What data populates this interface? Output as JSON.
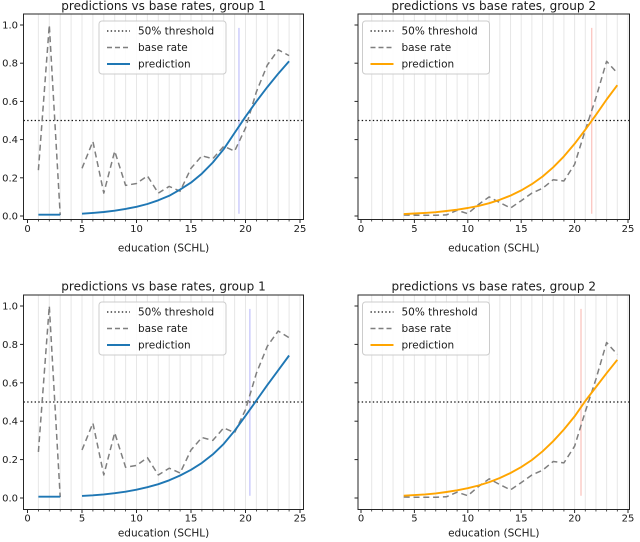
{
  "figure": {
    "background": "#ffffff",
    "grid_color": "#e7e7e7",
    "spine_color": "#262626",
    "text_color": "#1a1a1a",
    "threshold_color": "#111111",
    "base_rate_color": "#7f7f7f",
    "group1_color": "#1f77b4",
    "group2_color": "#ffa500",
    "vline_color_group1": "#c9c9fb",
    "vline_color_group2": "#fbc9c4"
  },
  "chart_data": [
    {
      "id": "group1-top",
      "type": "line",
      "title": "predictions vs base rates, group 1",
      "xlabel": "education (SCHL)",
      "xlim": [
        -0.4,
        25.4
      ],
      "ylim": [
        -0.02,
        1.06
      ],
      "xticks": [
        "0",
        "5",
        "10",
        "15",
        "20",
        "25"
      ],
      "xtick_values": [
        0,
        5,
        10,
        15,
        20,
        25
      ],
      "ytick_labels": [
        "0.0",
        "0.2",
        "0.4",
        "0.6",
        "0.8",
        "1.0"
      ],
      "ytick_values": [
        0.0,
        0.2,
        0.4,
        0.6,
        0.8,
        1.0
      ],
      "show_ytick_labels": true,
      "grid": "vertical-unit-lines",
      "threshold_y": 0.5,
      "vline": {
        "x": 19.4,
        "color": "#c9c9fb"
      },
      "legend": {
        "position": "upper-center",
        "items": [
          {
            "label": "50% threshold",
            "style": "dotted",
            "color": "#111111"
          },
          {
            "label": "base rate",
            "style": "dashed",
            "color": "#7f7f7f"
          },
          {
            "label": "prediction",
            "style": "solid",
            "color": "#1f77b4"
          }
        ]
      },
      "series": [
        {
          "name": "base rate",
          "style": "dashed",
          "color": "#7f7f7f",
          "segments": [
            [
              [
                1,
                0.24
              ],
              [
                2,
                1.0
              ],
              [
                3,
                0.005
              ]
            ],
            [
              [
                5,
                0.25
              ],
              [
                6,
                0.39
              ],
              [
                7,
                0.12
              ],
              [
                8,
                0.34
              ],
              [
                9,
                0.16
              ],
              [
                10,
                0.17
              ],
              [
                11,
                0.21
              ],
              [
                12,
                0.12
              ],
              [
                13,
                0.155
              ],
              [
                14,
                0.13
              ],
              [
                15,
                0.25
              ],
              [
                16,
                0.315
              ],
              [
                17,
                0.3
              ],
              [
                18,
                0.365
              ],
              [
                19,
                0.34
              ],
              [
                20,
                0.46
              ],
              [
                21,
                0.65
              ],
              [
                22,
                0.79
              ],
              [
                23,
                0.87
              ],
              [
                24,
                0.84
              ]
            ]
          ]
        },
        {
          "name": "prediction",
          "style": "solid",
          "color": "#1f77b4",
          "segments": [
            [
              [
                1,
                0.007
              ],
              [
                3,
                0.007
              ]
            ],
            [
              [
                5,
                0.012
              ],
              [
                6,
                0.016
              ],
              [
                7,
                0.021
              ],
              [
                8,
                0.028
              ],
              [
                9,
                0.037
              ],
              [
                10,
                0.048
              ],
              [
                11,
                0.063
              ],
              [
                12,
                0.082
              ],
              [
                13,
                0.106
              ],
              [
                14,
                0.138
              ],
              [
                15,
                0.175
              ],
              [
                16,
                0.222
              ],
              [
                17,
                0.28
              ],
              [
                18,
                0.35
              ],
              [
                19,
                0.435
              ],
              [
                20,
                0.52
              ],
              [
                21,
                0.6
              ],
              [
                22,
                0.675
              ],
              [
                23,
                0.745
              ],
              [
                24,
                0.81
              ]
            ]
          ]
        }
      ]
    },
    {
      "id": "group2-top",
      "type": "line",
      "title": "predictions vs base rates, group 2",
      "xlabel": "education (SCHL)",
      "xlim": [
        -0.4,
        25.4
      ],
      "ylim": [
        -0.02,
        1.06
      ],
      "xticks": [
        "0",
        "5",
        "10",
        "15",
        "20",
        "25"
      ],
      "xtick_values": [
        0,
        5,
        10,
        15,
        20,
        25
      ],
      "ytick_labels": [],
      "ytick_values": [
        0.0,
        0.2,
        0.4,
        0.6,
        0.8,
        1.0
      ],
      "show_ytick_labels": false,
      "grid": "vertical-unit-lines",
      "threshold_y": 0.5,
      "vline": {
        "x": 21.6,
        "color": "#fbc9c4"
      },
      "legend": {
        "position": "upper-left",
        "items": [
          {
            "label": "50% threshold",
            "style": "dotted",
            "color": "#111111"
          },
          {
            "label": "base rate",
            "style": "dashed",
            "color": "#7f7f7f"
          },
          {
            "label": "prediction",
            "style": "solid",
            "color": "#ffa500"
          }
        ]
      },
      "series": [
        {
          "name": "base rate",
          "style": "dashed",
          "color": "#7f7f7f",
          "segments": [
            [
              [
                4,
                0.005
              ],
              [
                5,
                0.004
              ],
              [
                6,
                0.004
              ],
              [
                7,
                0.004
              ],
              [
                8,
                0.006
              ],
              [
                9,
                0.03
              ],
              [
                10,
                0.012
              ],
              [
                11,
                0.06
              ],
              [
                12,
                0.1
              ],
              [
                13,
                0.07
              ],
              [
                14,
                0.042
              ],
              [
                15,
                0.08
              ],
              [
                16,
                0.12
              ],
              [
                17,
                0.145
              ],
              [
                18,
                0.19
              ],
              [
                19,
                0.183
              ],
              [
                20,
                0.27
              ],
              [
                21,
                0.45
              ],
              [
                22,
                0.62
              ],
              [
                23,
                0.81
              ],
              [
                24,
                0.748
              ]
            ]
          ]
        },
        {
          "name": "prediction",
          "style": "solid",
          "color": "#ffa500",
          "segments": [
            [
              [
                4,
                0.01
              ],
              [
                5,
                0.013
              ],
              [
                6,
                0.016
              ],
              [
                7,
                0.02
              ],
              [
                8,
                0.026
              ],
              [
                9,
                0.033
              ],
              [
                10,
                0.042
              ],
              [
                11,
                0.053
              ],
              [
                12,
                0.067
              ],
              [
                13,
                0.085
              ],
              [
                14,
                0.107
              ],
              [
                15,
                0.134
              ],
              [
                16,
                0.167
              ],
              [
                17,
                0.207
              ],
              [
                18,
                0.255
              ],
              [
                19,
                0.312
              ],
              [
                20,
                0.378
              ],
              [
                21,
                0.452
              ],
              [
                22,
                0.53
              ],
              [
                23,
                0.61
              ],
              [
                24,
                0.685
              ]
            ]
          ]
        }
      ]
    },
    {
      "id": "group1-bottom",
      "type": "line",
      "title": "predictions vs base rates, group 1",
      "xlabel": "education (SCHL)",
      "xlim": [
        -0.4,
        25.4
      ],
      "ylim": [
        -0.05,
        1.06
      ],
      "xticks": [
        "0",
        "5",
        "10",
        "15",
        "20",
        "25"
      ],
      "xtick_values": [
        0,
        5,
        10,
        15,
        20,
        25
      ],
      "ytick_labels": [
        "0.0",
        "0.2",
        "0.4",
        "0.6",
        "0.8",
        "1.0"
      ],
      "ytick_values": [
        0.0,
        0.2,
        0.4,
        0.6,
        0.8,
        1.0
      ],
      "show_ytick_labels": true,
      "grid": "vertical-unit-lines",
      "threshold_y": 0.5,
      "vline": {
        "x": 20.4,
        "color": "#c9c9fb"
      },
      "legend": {
        "position": "upper-center",
        "items": [
          {
            "label": "50% threshold",
            "style": "dotted",
            "color": "#111111"
          },
          {
            "label": "base rate",
            "style": "dashed",
            "color": "#7f7f7f"
          },
          {
            "label": "prediction",
            "style": "solid",
            "color": "#1f77b4"
          }
        ]
      },
      "series": [
        {
          "name": "base rate",
          "style": "dashed",
          "color": "#7f7f7f",
          "segments": [
            [
              [
                1,
                0.24
              ],
              [
                2,
                1.0
              ],
              [
                3,
                0.005
              ]
            ],
            [
              [
                5,
                0.25
              ],
              [
                6,
                0.39
              ],
              [
                7,
                0.12
              ],
              [
                8,
                0.34
              ],
              [
                9,
                0.16
              ],
              [
                10,
                0.17
              ],
              [
                11,
                0.21
              ],
              [
                12,
                0.12
              ],
              [
                13,
                0.155
              ],
              [
                14,
                0.13
              ],
              [
                15,
                0.25
              ],
              [
                16,
                0.315
              ],
              [
                17,
                0.3
              ],
              [
                18,
                0.365
              ],
              [
                19,
                0.34
              ],
              [
                20,
                0.46
              ],
              [
                21,
                0.65
              ],
              [
                22,
                0.79
              ],
              [
                23,
                0.87
              ],
              [
                24,
                0.835
              ]
            ]
          ]
        },
        {
          "name": "prediction",
          "style": "solid",
          "color": "#1f77b4",
          "segments": [
            [
              [
                1,
                0.007
              ],
              [
                3,
                0.007
              ]
            ],
            [
              [
                5,
                0.011
              ],
              [
                6,
                0.014
              ],
              [
                7,
                0.019
              ],
              [
                8,
                0.025
              ],
              [
                9,
                0.033
              ],
              [
                10,
                0.043
              ],
              [
                11,
                0.056
              ],
              [
                12,
                0.072
              ],
              [
                13,
                0.092
              ],
              [
                14,
                0.117
              ],
              [
                15,
                0.147
              ],
              [
                16,
                0.183
              ],
              [
                17,
                0.227
              ],
              [
                18,
                0.282
              ],
              [
                19,
                0.35
              ],
              [
                20,
                0.428
              ],
              [
                21,
                0.508
              ],
              [
                22,
                0.588
              ],
              [
                23,
                0.665
              ],
              [
                24,
                0.742
              ]
            ]
          ]
        }
      ]
    },
    {
      "id": "group2-bottom",
      "type": "line",
      "title": "predictions vs base rates, group 2",
      "xlabel": "education (SCHL)",
      "xlim": [
        -0.4,
        25.4
      ],
      "ylim": [
        -0.05,
        1.06
      ],
      "xticks": [
        "0",
        "5",
        "10",
        "15",
        "20",
        "25"
      ],
      "xtick_values": [
        0,
        5,
        10,
        15,
        20,
        25
      ],
      "ytick_labels": [],
      "ytick_values": [
        0.0,
        0.2,
        0.4,
        0.6,
        0.8,
        1.0
      ],
      "show_ytick_labels": false,
      "grid": "vertical-unit-lines",
      "threshold_y": 0.5,
      "vline": {
        "x": 20.6,
        "color": "#fbc9c4"
      },
      "legend": {
        "position": "upper-left",
        "items": [
          {
            "label": "50% threshold",
            "style": "dotted",
            "color": "#111111"
          },
          {
            "label": "base rate",
            "style": "dashed",
            "color": "#7f7f7f"
          },
          {
            "label": "prediction",
            "style": "solid",
            "color": "#ffa500"
          }
        ]
      },
      "series": [
        {
          "name": "base rate",
          "style": "dashed",
          "color": "#7f7f7f",
          "segments": [
            [
              [
                4,
                0.005
              ],
              [
                5,
                0.004
              ],
              [
                6,
                0.004
              ],
              [
                7,
                0.004
              ],
              [
                8,
                0.006
              ],
              [
                9,
                0.03
              ],
              [
                10,
                0.012
              ],
              [
                11,
                0.06
              ],
              [
                12,
                0.1
              ],
              [
                13,
                0.07
              ],
              [
                14,
                0.042
              ],
              [
                15,
                0.08
              ],
              [
                16,
                0.12
              ],
              [
                17,
                0.145
              ],
              [
                18,
                0.19
              ],
              [
                19,
                0.183
              ],
              [
                20,
                0.27
              ],
              [
                21,
                0.45
              ],
              [
                22,
                0.62
              ],
              [
                23,
                0.81
              ],
              [
                24,
                0.748
              ]
            ]
          ]
        },
        {
          "name": "prediction",
          "style": "solid",
          "color": "#ffa500",
          "segments": [
            [
              [
                4,
                0.012
              ],
              [
                5,
                0.015
              ],
              [
                6,
                0.019
              ],
              [
                7,
                0.024
              ],
              [
                8,
                0.031
              ],
              [
                9,
                0.04
              ],
              [
                10,
                0.051
              ],
              [
                11,
                0.065
              ],
              [
                12,
                0.083
              ],
              [
                13,
                0.104
              ],
              [
                14,
                0.13
              ],
              [
                15,
                0.161
              ],
              [
                16,
                0.198
              ],
              [
                17,
                0.243
              ],
              [
                18,
                0.296
              ],
              [
                19,
                0.357
              ],
              [
                20,
                0.425
              ],
              [
                21,
                0.505
              ],
              [
                22,
                0.578
              ],
              [
                23,
                0.65
              ],
              [
                24,
                0.72
              ]
            ]
          ]
        }
      ]
    }
  ]
}
